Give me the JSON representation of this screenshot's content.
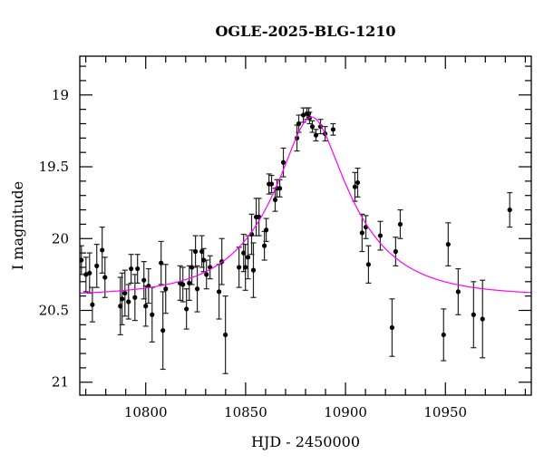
{
  "chart_data": {
    "type": "scatter",
    "title": "OGLE-2025-BLG-1210",
    "xlabel": "HJD - 2450000",
    "ylabel": "I magnitude",
    "xlim": [
      10767,
      10993
    ],
    "ylim": [
      21.09,
      18.73
    ],
    "y_inverted": true,
    "grid": false,
    "x_ticks": [
      "10800",
      "10850",
      "10900",
      "10950"
    ],
    "y_ticks": [
      "19",
      "19.5",
      "20",
      "20.5",
      "21"
    ],
    "colors": {
      "points": "#000000",
      "model": "#ff00ff"
    },
    "series": [
      {
        "type": "errorbar",
        "x": [
          10767.8,
          10770.1,
          10771.9,
          10773.3,
          10775.5,
          10778.2,
          10779.6,
          10787.3,
          10788.2,
          10789.6,
          10791.4,
          10792.7,
          10794.6,
          10795.9,
          10799.1,
          10800.0,
          10801.4,
          10803.2,
          10807.7,
          10808.6,
          10810.0,
          10817.2,
          10818.6,
          10820.4,
          10821.8,
          10823.1,
          10824.9,
          10825.8,
          10828.1,
          10829.0,
          10830.4,
          10832.2,
          10836.7,
          10838.1,
          10839.9,
          10846.7,
          10849.0,
          10849.9,
          10851.2,
          10853.0,
          10853.9,
          10855.3,
          10856.7,
          10859.4,
          10860.3,
          10861.7,
          10863.0,
          10864.8,
          10865.7,
          10867.1,
          10868.9,
          10875.7,
          10876.6,
          10878.9,
          10880.7,
          10881.6,
          10882.0,
          10883.4,
          10885.2,
          10887.5,
          10889.8,
          10893.8,
          10904.7,
          10906.1,
          10908.3,
          10910.2,
          10911.5,
          10917.4,
          10923.3,
          10925.1,
          10927.4,
          10949.1,
          10951.4,
          10956.4,
          10964.1,
          10968.6,
          10982.2
        ],
        "y": [
          20.15,
          20.25,
          20.24,
          20.46,
          20.19,
          20.08,
          20.27,
          20.47,
          20.42,
          20.38,
          20.44,
          20.21,
          20.41,
          20.21,
          20.29,
          20.47,
          20.33,
          20.53,
          20.17,
          20.64,
          20.35,
          20.31,
          20.32,
          20.49,
          20.31,
          20.2,
          20.09,
          20.35,
          20.09,
          20.15,
          20.25,
          20.2,
          20.37,
          20.16,
          20.67,
          20.2,
          20.1,
          20.2,
          20.13,
          19.97,
          20.22,
          19.85,
          19.85,
          20.05,
          19.94,
          19.62,
          19.62,
          19.73,
          19.65,
          19.65,
          19.47,
          19.3,
          19.2,
          19.14,
          19.13,
          19.13,
          19.16,
          19.22,
          19.28,
          19.22,
          19.27,
          19.24,
          19.64,
          19.61,
          19.96,
          19.92,
          20.18,
          19.98,
          20.62,
          20.09,
          19.9,
          20.67,
          20.04,
          20.37,
          20.53,
          20.56,
          19.8
        ],
        "yerr": [
          0.1,
          0.12,
          0.14,
          0.12,
          0.15,
          0.16,
          0.14,
          0.2,
          0.18,
          0.16,
          0.12,
          0.1,
          0.16,
          0.1,
          0.13,
          0.14,
          0.12,
          0.19,
          0.15,
          0.27,
          0.17,
          0.12,
          0.12,
          0.14,
          0.12,
          0.12,
          0.11,
          0.16,
          0.11,
          0.08,
          0.1,
          0.08,
          0.19,
          0.16,
          0.27,
          0.14,
          0.13,
          0.16,
          0.15,
          0.14,
          0.19,
          0.13,
          0.13,
          0.1,
          0.08,
          0.07,
          0.06,
          0.08,
          0.06,
          0.06,
          0.1,
          0.09,
          0.06,
          0.05,
          0.04,
          0.04,
          0.04,
          0.04,
          0.04,
          0.05,
          0.05,
          0.04,
          0.1,
          0.1,
          0.13,
          0.08,
          0.13,
          0.1,
          0.2,
          0.1,
          0.1,
          0.18,
          0.15,
          0.16,
          0.23,
          0.27,
          0.12
        ]
      },
      {
        "type": "line",
        "model": "point-lens",
        "t0": 10883,
        "u0": 0.33,
        "tE": 40,
        "baseline_mag": 20.4
      }
    ]
  }
}
